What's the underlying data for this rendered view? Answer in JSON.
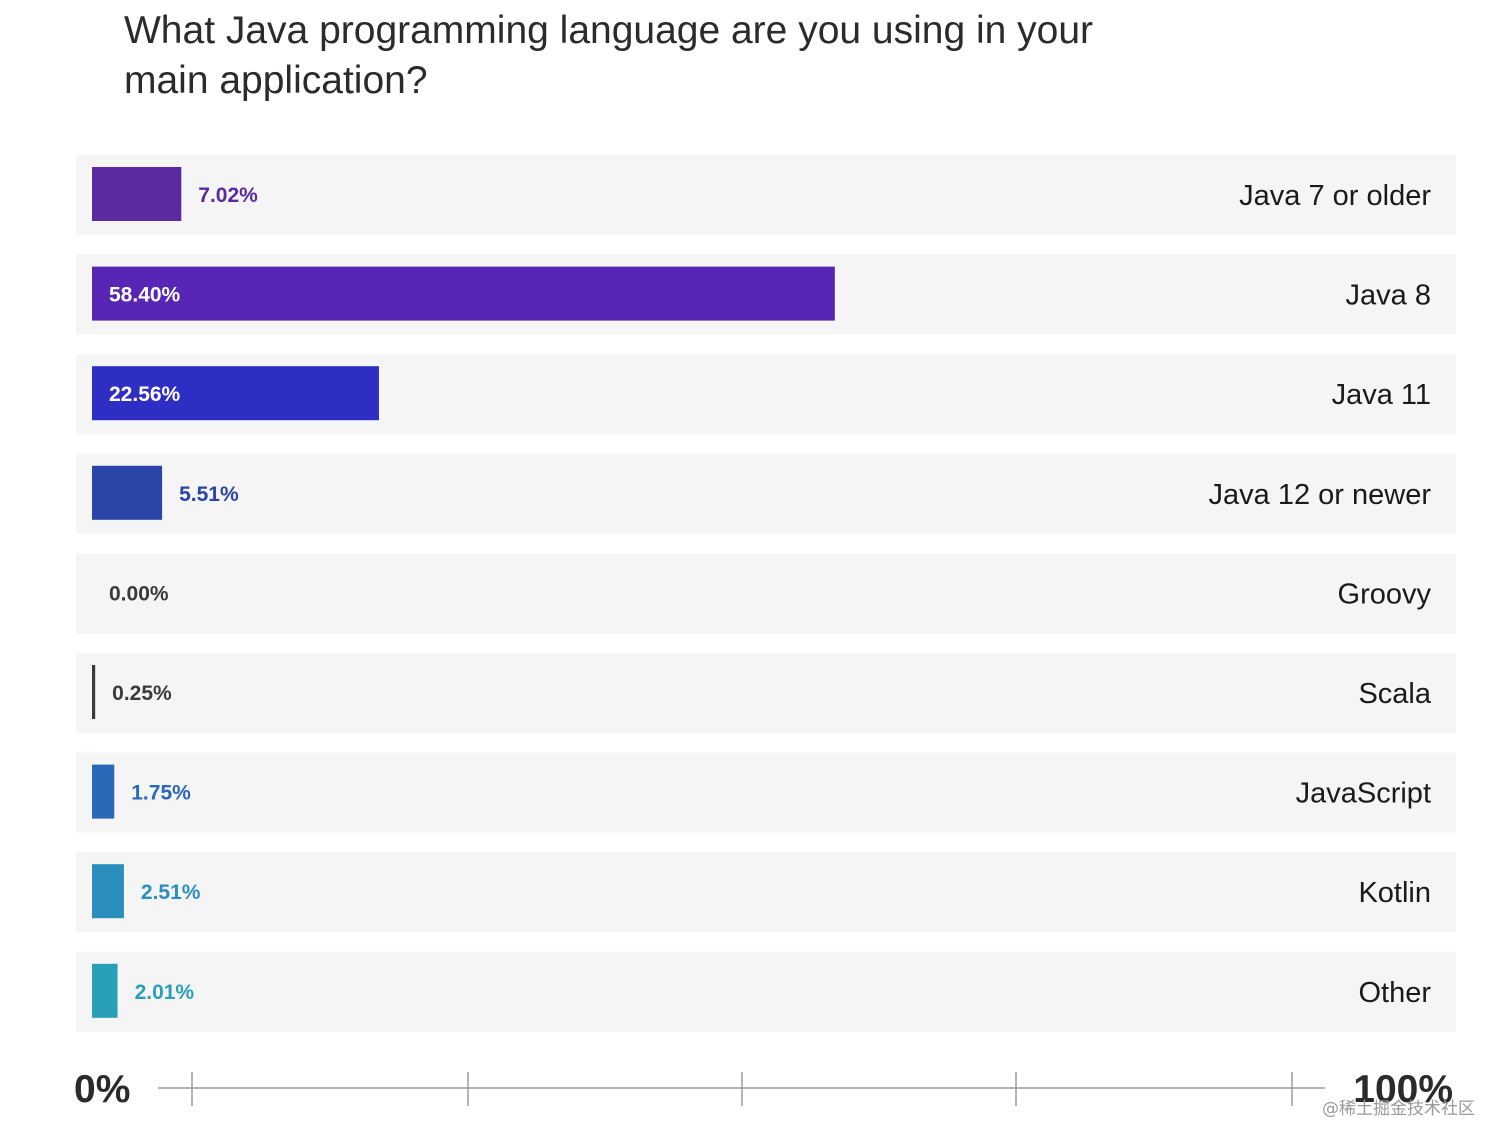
{
  "chart_data": {
    "type": "bar",
    "orientation": "horizontal",
    "title": "What Java programming language are you using in your main application?",
    "categories": [
      "Java 7 or older",
      "Java 8",
      "Java 11",
      "Java 12 or newer",
      "Groovy",
      "Scala",
      "JavaScript",
      "Kotlin",
      "Other"
    ],
    "value_labels": [
      "7.02%",
      "58.40%",
      "22.56%",
      "5.51%",
      "0.00%",
      "0.25%",
      "1.75%",
      "2.51%",
      "2.01%"
    ],
    "values": [
      7.02,
      58.4,
      22.56,
      5.51,
      0.0,
      0.25,
      1.75,
      2.51,
      2.01
    ],
    "colors": [
      "#5b2aa0",
      "#5726b4",
      "#2e2ec4",
      "#2a44a8",
      "#3a3a3a",
      "#3a3a3a",
      "#2a68b8",
      "#2a8fbd",
      "#2a9fb8"
    ],
    "xlim": [
      0,
      100
    ],
    "x_tick_labels": [
      "0%",
      "100%"
    ],
    "grid": false,
    "legend": "none"
  },
  "watermark": "@稀土掘金技术社区"
}
